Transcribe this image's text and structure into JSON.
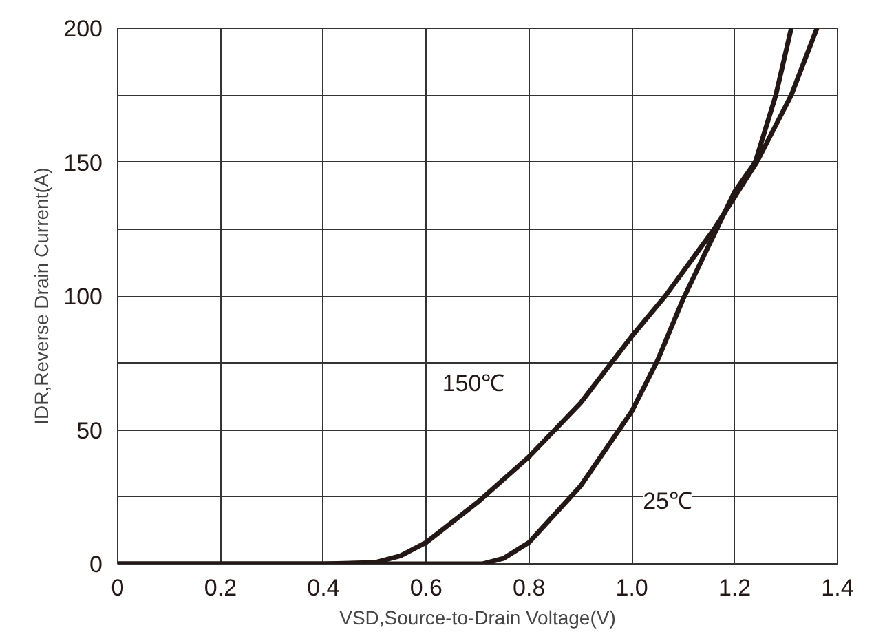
{
  "chart_data": {
    "type": "line",
    "xlabel": "VSD,Source-to-Drain Voltage(V)",
    "ylabel": "IDR,Reverse Drain Current(A)",
    "xlim": [
      0,
      1.4
    ],
    "ylim": [
      0,
      200
    ],
    "xticks": [
      {
        "value": 0,
        "label": "0"
      },
      {
        "value": 0.2,
        "label": "0.2"
      },
      {
        "value": 0.4,
        "label": "0.4"
      },
      {
        "value": 0.6,
        "label": "0.6"
      },
      {
        "value": 0.8,
        "label": "0.8"
      },
      {
        "value": 1.0,
        "label": "1.0"
      },
      {
        "value": 1.2,
        "label": "1.2"
      },
      {
        "value": 1.4,
        "label": "1.4"
      }
    ],
    "yticks": [
      0,
      {
        "value": 25,
        "label": null
      },
      50,
      {
        "value": 75,
        "label": null
      },
      100,
      {
        "value": 125,
        "label": null
      },
      150,
      {
        "value": 175,
        "label": null
      },
      200
    ],
    "grid": true,
    "marker": "none",
    "line_style": "solid",
    "series": [
      {
        "name": "150℃",
        "color": "#231815",
        "x": [
          0,
          0.2,
          0.4,
          0.5,
          0.55,
          0.6,
          0.7,
          0.8,
          0.9,
          1.0,
          1.065,
          1.16,
          1.243,
          1.31,
          1.36
        ],
        "values": [
          0,
          0,
          0,
          0.5,
          3,
          8,
          23,
          40,
          60,
          85,
          100,
          125,
          150,
          175,
          200
        ]
      },
      {
        "name": "25℃",
        "color": "#231815",
        "x": [
          0,
          0.2,
          0.4,
          0.6,
          0.71,
          0.75,
          0.8,
          0.9,
          1.0,
          1.05,
          1.1,
          1.2,
          1.24,
          1.28,
          1.31
        ],
        "values": [
          0,
          0,
          0,
          0,
          0,
          2,
          8,
          29,
          57,
          76,
          99,
          139,
          150,
          175,
          200
        ]
      }
    ]
  }
}
